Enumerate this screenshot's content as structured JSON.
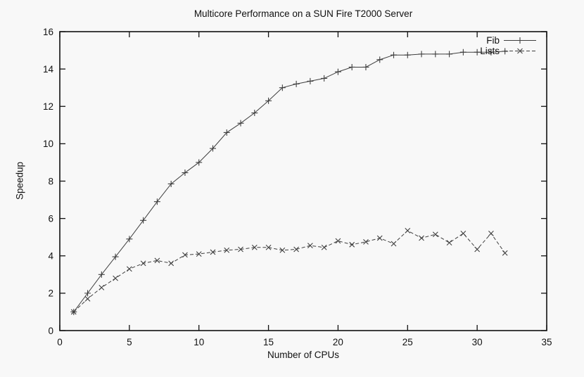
{
  "chart_data": {
    "type": "line",
    "title": "Multicore Performance on a SUN Fire T2000 Server",
    "xlabel": "Number of CPUs",
    "ylabel": "Speedup",
    "xlim": [
      0,
      35
    ],
    "ylim": [
      0,
      16
    ],
    "x_ticks": [
      0,
      5,
      10,
      15,
      20,
      25,
      30,
      35
    ],
    "y_ticks": [
      0,
      2,
      4,
      6,
      8,
      10,
      12,
      14,
      16
    ],
    "grid": false,
    "legend_position": "top-right-inside",
    "x": [
      1,
      2,
      3,
      4,
      5,
      6,
      7,
      8,
      9,
      10,
      11,
      12,
      13,
      14,
      15,
      16,
      17,
      18,
      19,
      20,
      21,
      22,
      23,
      24,
      25,
      26,
      27,
      28,
      29,
      30,
      31,
      32
    ],
    "series": [
      {
        "name": "Fib",
        "line_style": "solid",
        "marker": "plus",
        "values": [
          1.0,
          2.0,
          3.0,
          3.95,
          4.9,
          5.9,
          6.9,
          7.85,
          8.45,
          9.0,
          9.75,
          10.6,
          11.1,
          11.65,
          12.3,
          13.0,
          13.2,
          13.35,
          13.5,
          13.85,
          14.1,
          14.1,
          14.5,
          14.75,
          14.75,
          14.8,
          14.8,
          14.8,
          14.9,
          14.9,
          14.9,
          14.95
        ]
      },
      {
        "name": "Lists",
        "line_style": "dashed",
        "marker": "cross",
        "values": [
          1.0,
          1.7,
          2.3,
          2.8,
          3.3,
          3.6,
          3.75,
          3.6,
          4.05,
          4.1,
          4.2,
          4.3,
          4.35,
          4.45,
          4.45,
          4.3,
          4.35,
          4.55,
          4.45,
          4.8,
          4.6,
          4.75,
          4.95,
          4.65,
          5.35,
          4.95,
          5.15,
          4.7,
          5.2,
          4.35,
          5.2,
          4.15
        ]
      }
    ],
    "colors": {
      "background": "#f8f8f8",
      "line": "#3f3f3f",
      "axis": "#111111",
      "text": "#111111"
    }
  }
}
